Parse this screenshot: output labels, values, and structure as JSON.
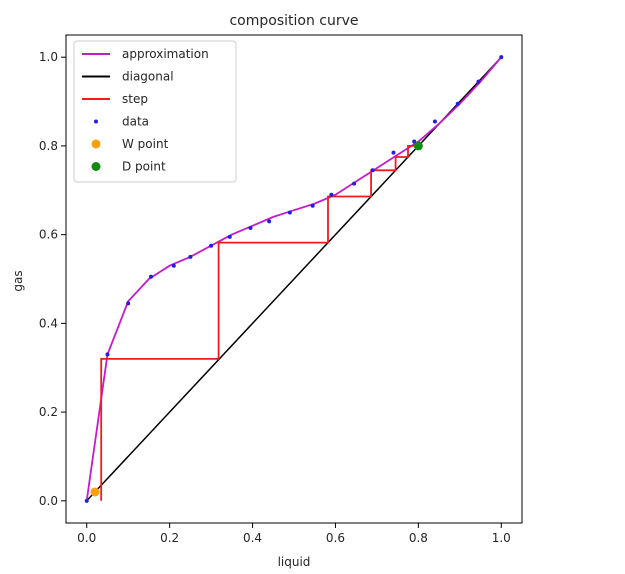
{
  "chart_data": {
    "type": "line",
    "title": "composition curve",
    "xlabel": "liquid",
    "ylabel": "gas",
    "xlim": [
      -0.05,
      1.05
    ],
    "ylim": [
      -0.05,
      1.05
    ],
    "x_ticks": [
      "0.0",
      "0.2",
      "0.4",
      "0.6",
      "0.8",
      "1.0"
    ],
    "y_ticks": [
      "0.0",
      "0.2",
      "0.4",
      "0.6",
      "0.8",
      "1.0"
    ],
    "grid": false,
    "legend_position": "top-left",
    "legend": [
      "approximation",
      "diagonal",
      "step",
      "data",
      "W point",
      "D point"
    ],
    "colors": {
      "approximation": "#c51bcf",
      "diagonal": "#000000",
      "step": "#ee1c1c",
      "data": "#1f1fe6",
      "w_point": "#ff9f0e",
      "d_point": "#118a11"
    },
    "series": [
      {
        "name": "approximation",
        "x": [
          0.0,
          0.05,
          0.1,
          0.15,
          0.2,
          0.25,
          0.3,
          0.35,
          0.4,
          0.45,
          0.5,
          0.55,
          0.6,
          0.65,
          0.7,
          0.75,
          0.8,
          0.85,
          0.9,
          0.95,
          1.0
        ],
        "y": [
          0.0,
          0.33,
          0.45,
          0.5,
          0.53,
          0.55,
          0.575,
          0.6,
          0.62,
          0.64,
          0.655,
          0.67,
          0.69,
          0.72,
          0.75,
          0.78,
          0.81,
          0.85,
          0.895,
          0.945,
          1.0
        ]
      },
      {
        "name": "diagonal",
        "x": [
          0.0,
          1.0
        ],
        "y": [
          0.0,
          1.0
        ]
      },
      {
        "name": "step",
        "x": [
          0.035,
          0.035,
          0.318,
          0.318,
          0.582,
          0.582,
          0.686,
          0.686,
          0.745,
          0.745,
          0.775,
          0.775,
          0.8
        ],
        "y": [
          0.0,
          0.32,
          0.32,
          0.582,
          0.582,
          0.686,
          0.686,
          0.745,
          0.745,
          0.775,
          0.775,
          0.8,
          0.8
        ]
      },
      {
        "name": "data",
        "x": [
          0.0,
          0.05,
          0.1,
          0.155,
          0.21,
          0.25,
          0.3,
          0.345,
          0.395,
          0.44,
          0.49,
          0.545,
          0.59,
          0.645,
          0.69,
          0.74,
          0.79,
          0.84,
          0.895,
          0.945,
          1.0
        ],
        "y": [
          0.0,
          0.33,
          0.445,
          0.505,
          0.53,
          0.55,
          0.575,
          0.595,
          0.615,
          0.63,
          0.65,
          0.665,
          0.69,
          0.715,
          0.745,
          0.785,
          0.81,
          0.855,
          0.895,
          0.945,
          1.0
        ]
      },
      {
        "name": "W point",
        "x": [
          0.02
        ],
        "y": [
          0.02
        ]
      },
      {
        "name": "D point",
        "x": [
          0.8
        ],
        "y": [
          0.8
        ]
      }
    ]
  }
}
